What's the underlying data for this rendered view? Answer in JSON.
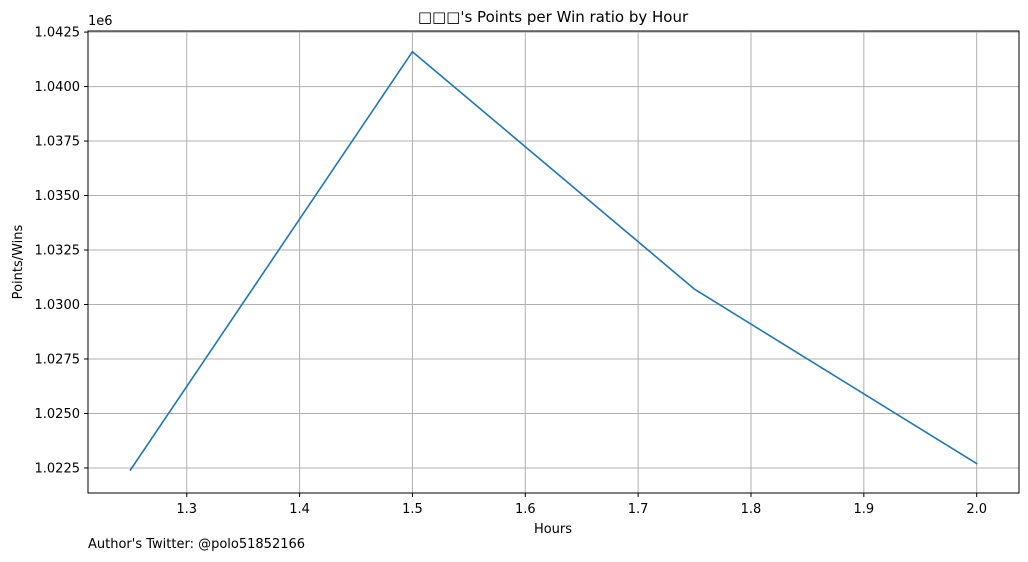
{
  "chart_data": {
    "type": "line",
    "title": "□□□'s Points per Win ratio by Hour",
    "xlabel": "Hours",
    "ylabel": "Points/Wins",
    "y_offset_label": "1e6",
    "xlim": [
      1.2125,
      2.0375
    ],
    "ylim": [
      1.02135,
      1.04255
    ],
    "x_ticks": [
      "1.3",
      "1.4",
      "1.5",
      "1.6",
      "1.7",
      "1.8",
      "1.9",
      "2.0"
    ],
    "x_tick_values": [
      1.3,
      1.4,
      1.5,
      1.6,
      1.7,
      1.8,
      1.9,
      2.0
    ],
    "y_ticks": [
      "1.0225",
      "1.0250",
      "1.0275",
      "1.0300",
      "1.0325",
      "1.0350",
      "1.0375",
      "1.0400",
      "1.0425"
    ],
    "y_tick_values": [
      1.0225,
      1.025,
      1.0275,
      1.03,
      1.0325,
      1.035,
      1.0375,
      1.04,
      1.0425
    ],
    "grid": true,
    "series": [
      {
        "color": "#1f77b4",
        "x": [
          1.25,
          1.5,
          1.75,
          2.0
        ],
        "y": [
          1.0224,
          1.0416,
          1.0307,
          1.0227
        ]
      }
    ]
  },
  "footer": {
    "credit": "Author's Twitter: @polo51852166"
  }
}
